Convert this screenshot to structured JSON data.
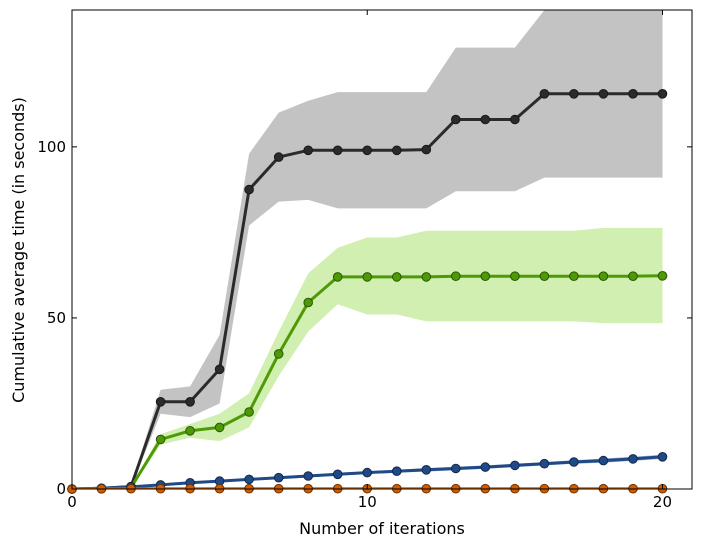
{
  "chart_data": {
    "type": "line",
    "title": "",
    "xlabel": "Number of iterations",
    "ylabel": "Cumulative average time (in seconds)",
    "xlim": [
      0,
      21
    ],
    "ylim": [
      0,
      140
    ],
    "xticks": [
      0,
      10,
      20
    ],
    "yticks": [
      0,
      50,
      100
    ],
    "grid": false,
    "legend": null,
    "x": [
      0,
      1,
      2,
      3,
      4,
      5,
      6,
      7,
      8,
      9,
      10,
      11,
      12,
      13,
      14,
      15,
      16,
      17,
      18,
      19,
      20
    ],
    "series": [
      {
        "color": "#2b2b2b",
        "band_color": "#c3c3c3",
        "values": [
          0,
          0.2,
          0.7,
          25.5,
          25.5,
          35,
          87.5,
          97,
          99,
          99,
          99,
          99,
          99.2,
          108,
          108,
          108,
          115.5,
          115.5,
          115.5,
          115.5,
          115.5
        ],
        "upper": [
          0,
          0.3,
          1.0,
          29,
          30,
          45,
          98,
          110,
          113.5,
          116,
          116,
          116,
          116,
          129,
          129,
          129,
          140,
          140,
          140,
          140,
          140
        ],
        "lower": [
          0,
          0.1,
          0.4,
          22,
          21,
          25,
          77,
          84,
          84.5,
          82,
          82,
          82,
          82,
          87,
          87,
          87,
          91,
          91,
          91,
          91,
          91
        ]
      },
      {
        "color": "#4e9a06",
        "band_color": "#d1efb1",
        "values": [
          0,
          0.1,
          0.4,
          14.5,
          17,
          18,
          22.5,
          39.5,
          54.5,
          62,
          62,
          62,
          62,
          62.2,
          62.2,
          62.2,
          62.2,
          62.2,
          62.2,
          62.2,
          62.3
        ],
        "upper": [
          0,
          0.2,
          0.8,
          16,
          19,
          22,
          28,
          46,
          63,
          70.5,
          73.5,
          73.5,
          75.5,
          75.5,
          75.5,
          75.5,
          75.5,
          75.5,
          76.3,
          76.3,
          76.3
        ],
        "lower": [
          0,
          0.0,
          0.1,
          13,
          15,
          14,
          18,
          33,
          46,
          54,
          51,
          51,
          49,
          49,
          49,
          49,
          49,
          49,
          48.5,
          48.5,
          48.5
        ]
      },
      {
        "color": "#204a87",
        "band_color": "#9db3d1",
        "values": [
          0,
          0.2,
          0.6,
          1.2,
          1.8,
          2.3,
          2.8,
          3.3,
          3.8,
          4.3,
          4.8,
          5.2,
          5.6,
          6.0,
          6.4,
          6.9,
          7.4,
          7.9,
          8.3,
          8.8,
          9.4
        ],
        "upper": [
          0,
          0.3,
          0.8,
          1.5,
          2.1,
          2.6,
          3.1,
          3.7,
          4.2,
          4.7,
          5.2,
          5.6,
          6.1,
          6.5,
          6.9,
          7.4,
          7.9,
          8.4,
          8.9,
          9.4,
          10.0
        ],
        "lower": [
          0,
          0.1,
          0.4,
          0.9,
          1.5,
          2.0,
          2.5,
          2.9,
          3.4,
          3.9,
          4.4,
          4.8,
          5.1,
          5.5,
          5.9,
          6.4,
          6.9,
          7.4,
          7.7,
          8.2,
          8.8
        ]
      },
      {
        "color": "#ce5c00",
        "band_color": "#f6c49c",
        "values": [
          0,
          0.05,
          0.08,
          0.1,
          0.1,
          0.1,
          0.1,
          0.1,
          0.1,
          0.1,
          0.1,
          0.1,
          0.1,
          0.1,
          0.1,
          0.1,
          0.1,
          0.1,
          0.1,
          0.1,
          0.1
        ],
        "upper": [
          0,
          0.1,
          0.15,
          0.2,
          0.2,
          0.2,
          0.2,
          0.2,
          0.2,
          0.2,
          0.2,
          0.2,
          0.2,
          0.2,
          0.2,
          0.2,
          0.2,
          0.2,
          0.2,
          0.2,
          0.2
        ],
        "lower": [
          0,
          0.0,
          0.0,
          0.0,
          0.0,
          0.0,
          0.0,
          0.0,
          0.0,
          0.0,
          0.0,
          0.0,
          0.0,
          0.0,
          0.0,
          0.0,
          0.0,
          0.0,
          0.0,
          0.0,
          0.0
        ]
      }
    ]
  }
}
